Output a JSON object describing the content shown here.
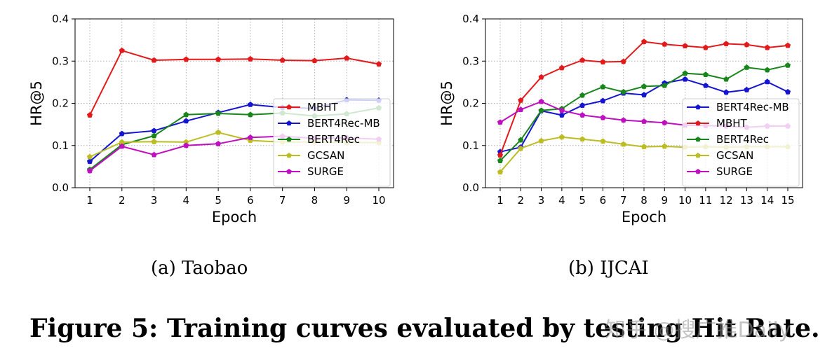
{
  "chart_data": [
    {
      "type": "line",
      "xlabel": "Epoch",
      "ylabel": "HR@5",
      "x": [
        1,
        2,
        3,
        4,
        5,
        6,
        7,
        8,
        9,
        10
      ],
      "ylim": [
        0,
        0.4
      ],
      "yticks": [
        "0.0",
        "0.1",
        "0.2",
        "0.3",
        "0.4"
      ],
      "grid": true,
      "legend_position": "center-right",
      "series": [
        {
          "name": "MBHT",
          "color": "#e31a1c",
          "values": [
            0.172,
            0.325,
            0.302,
            0.304,
            0.304,
            0.305,
            0.302,
            0.301,
            0.307,
            0.293
          ]
        },
        {
          "name": "BERT4Rec-MB",
          "color": "#1515d1",
          "values": [
            0.062,
            0.128,
            0.135,
            0.158,
            0.178,
            0.197,
            0.19,
            0.188,
            0.208,
            0.207
          ]
        },
        {
          "name": "BERT4Rec",
          "color": "#18861a",
          "values": [
            0.043,
            0.102,
            0.123,
            0.173,
            0.176,
            0.173,
            0.177,
            0.17,
            0.175,
            0.189
          ]
        },
        {
          "name": "GCSAN",
          "color": "#bcbd22",
          "values": [
            0.073,
            0.108,
            0.109,
            0.108,
            0.131,
            0.112,
            0.108,
            0.108,
            0.107,
            0.107
          ]
        },
        {
          "name": "SURGE",
          "color": "#bf10bf",
          "values": [
            0.04,
            0.098,
            0.078,
            0.1,
            0.104,
            0.119,
            0.122,
            0.117,
            0.118,
            0.115
          ]
        }
      ]
    },
    {
      "type": "line",
      "xlabel": "Epoch",
      "ylabel": "HR@5",
      "x": [
        1,
        2,
        3,
        4,
        5,
        6,
        7,
        8,
        9,
        10,
        11,
        12,
        13,
        14,
        15
      ],
      "ylim": [
        0,
        0.4
      ],
      "yticks": [
        "0.0",
        "0.1",
        "0.2",
        "0.3",
        "0.4"
      ],
      "grid": true,
      "legend_position": "center-right",
      "series": [
        {
          "name": "BERT4Rec-MB",
          "color": "#1515d1",
          "values": [
            0.085,
            0.096,
            0.182,
            0.172,
            0.195,
            0.206,
            0.224,
            0.22,
            0.248,
            0.257,
            0.242,
            0.226,
            0.232,
            0.251,
            0.227
          ]
        },
        {
          "name": "MBHT",
          "color": "#e31a1c",
          "values": [
            0.077,
            0.207,
            0.262,
            0.284,
            0.302,
            0.298,
            0.299,
            0.346,
            0.34,
            0.336,
            0.332,
            0.341,
            0.339,
            0.332,
            0.337
          ]
        },
        {
          "name": "BERT4Rec",
          "color": "#18861a",
          "values": [
            0.064,
            0.113,
            0.183,
            0.187,
            0.219,
            0.239,
            0.227,
            0.24,
            0.242,
            0.271,
            0.268,
            0.257,
            0.285,
            0.279,
            0.29
          ]
        },
        {
          "name": "GCSAN",
          "color": "#bcbd22",
          "values": [
            0.037,
            0.093,
            0.111,
            0.12,
            0.115,
            0.11,
            0.103,
            0.097,
            0.098,
            0.096,
            0.097,
            0.096,
            0.097,
            0.097,
            0.097
          ]
        },
        {
          "name": "SURGE",
          "color": "#bf10bf",
          "values": [
            0.155,
            0.185,
            0.204,
            0.183,
            0.172,
            0.166,
            0.16,
            0.157,
            0.154,
            0.148,
            0.147,
            0.146,
            0.143,
            0.146,
            0.146
          ]
        }
      ]
    }
  ],
  "subcaptions": [
    "(a)  Taobao",
    "(b)  IJCAI"
  ],
  "caption": "Figure 5: Training curves evaluated by testing Hit Rate.",
  "watermark": "知乎 @搜广推Daily"
}
